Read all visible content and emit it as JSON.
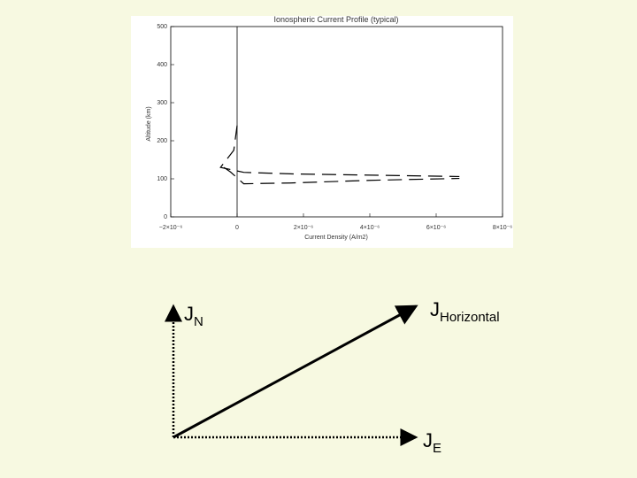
{
  "chart_data": {
    "type": "line",
    "title": "Ionospheric Current Profile (typical)",
    "xlabel": "Current Density (A/m2)",
    "ylabel": "Altitude (km)",
    "xlim": [
      -2e-06,
      8e-06
    ],
    "ylim": [
      0,
      500
    ],
    "xticks": [
      {
        "value": -2e-06,
        "label": "−2×10⁻⁶"
      },
      0,
      {
        "value": 2e-06,
        "label": "2×10⁻⁶"
      },
      {
        "value": 4e-06,
        "label": "4×10⁻⁶"
      },
      {
        "value": 6e-06,
        "label": "6×10⁻⁶"
      },
      {
        "value": 8e-06,
        "label": "8×10⁻⁶"
      }
    ],
    "yticks": [
      0,
      100,
      200,
      300,
      400,
      500
    ],
    "series": [
      {
        "color": "#000000",
        "x": [
          0,
          -1e-07,
          -5e-07,
          2e-07,
          1.6e-06,
          3.8e-06,
          6.7e-06
        ],
        "values": [
          240,
          175,
          130,
          117,
          113,
          110,
          106
        ]
      },
      {
        "color": "#000000",
        "x": [
          -4e-07,
          -2e-07,
          2e-07,
          1.6e-06,
          4e-06,
          6.7e-06
        ],
        "values": [
          130,
          118,
          87,
          89,
          96,
          101
        ]
      }
    ]
  },
  "diagram": {
    "labels": [
      {
        "main": "J",
        "sub": "N"
      },
      {
        "main": "J",
        "sub": "Horizontal"
      },
      {
        "main": "J",
        "sub": "E"
      }
    ]
  }
}
